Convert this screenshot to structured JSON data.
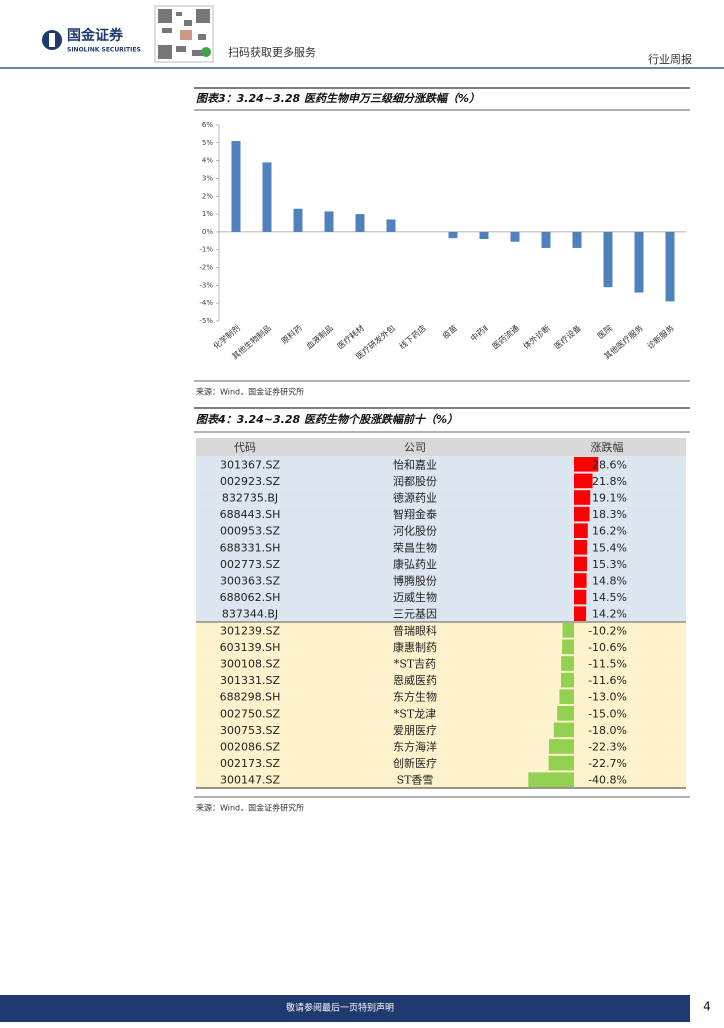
{
  "header": {
    "brand": "国金证券",
    "brand_en": "SINOLINK SECURITIES",
    "qr_text": "扫码获取更多服务",
    "report_type": "行业周报"
  },
  "chart_data": {
    "type": "bar",
    "title": "图表3：3.24~3.28 医药生物申万三级细分涨跌幅（%）",
    "categories": [
      "化学制剂",
      "其他生物制品",
      "原料药",
      "血液制品",
      "医疗耗材",
      "医疗研发外包",
      "线下药店",
      "疫苗",
      "中药Ⅱ",
      "医药流通",
      "体外诊断",
      "医疗设备",
      "医院",
      "其他医疗服务",
      "诊断服务"
    ],
    "values": [
      5.1,
      3.9,
      1.3,
      1.15,
      1.0,
      0.7,
      0,
      -0.35,
      -0.4,
      -0.55,
      -0.9,
      -0.9,
      -3.1,
      -3.4,
      -3.9
    ],
    "color": "#4f81bd",
    "ylim": [
      -5,
      6
    ],
    "yticks": [
      {
        "value": 6,
        "label": "6%"
      },
      {
        "value": 5,
        "label": "5%"
      },
      {
        "value": 4,
        "label": "4%"
      },
      {
        "value": 3,
        "label": "3%"
      },
      {
        "value": 2,
        "label": "2%"
      },
      {
        "value": 1,
        "label": "1%"
      },
      {
        "value": 0,
        "label": "0%"
      },
      {
        "value": -1,
        "label": "-1%"
      },
      {
        "value": -2,
        "label": "-2%"
      },
      {
        "value": -3,
        "label": "-3%"
      },
      {
        "value": -4,
        "label": "-4%"
      },
      {
        "value": -5,
        "label": "-5%"
      }
    ],
    "source": "来源：Wind，国金证券研究所"
  },
  "table": {
    "title": "图表4：3.24~3.28 医药生物个股涨跌幅前十（%）",
    "columns": [
      "代码",
      "公司",
      "涨跌幅"
    ],
    "rows": [
      {
        "code": "301367.SZ",
        "name": "怡和嘉业",
        "change": 28.6,
        "change_label": "28.6%"
      },
      {
        "code": "002923.SZ",
        "name": "润都股份",
        "change": 21.8,
        "change_label": "21.8%"
      },
      {
        "code": "832735.BJ",
        "name": "德源药业",
        "change": 19.1,
        "change_label": "19.1%"
      },
      {
        "code": "688443.SH",
        "name": "智翔金泰",
        "change": 18.3,
        "change_label": "18.3%"
      },
      {
        "code": "000953.SZ",
        "name": "河化股份",
        "change": 16.2,
        "change_label": "16.2%"
      },
      {
        "code": "688331.SH",
        "name": "荣昌生物",
        "change": 15.4,
        "change_label": "15.4%"
      },
      {
        "code": "002773.SZ",
        "name": "康弘药业",
        "change": 15.3,
        "change_label": "15.3%"
      },
      {
        "code": "300363.SZ",
        "name": "博腾股份",
        "change": 14.8,
        "change_label": "14.8%"
      },
      {
        "code": "688062.SH",
        "name": "迈威生物",
        "change": 14.5,
        "change_label": "14.5%"
      },
      {
        "code": "837344.BJ",
        "name": "三元基因",
        "change": 14.2,
        "change_label": "14.2%"
      },
      {
        "code": "301239.SZ",
        "name": "普瑞眼科",
        "change": -10.2,
        "change_label": "-10.2%"
      },
      {
        "code": "603139.SH",
        "name": "康惠制药",
        "change": -10.6,
        "change_label": "-10.6%"
      },
      {
        "code": "300108.SZ",
        "name": "*ST吉药",
        "change": -11.5,
        "change_label": "-11.5%"
      },
      {
        "code": "301331.SZ",
        "name": "恩威医药",
        "change": -11.6,
        "change_label": "-11.6%"
      },
      {
        "code": "688298.SH",
        "name": "东方生物",
        "change": -13.0,
        "change_label": "-13.0%"
      },
      {
        "code": "002750.SZ",
        "name": "*ST龙津",
        "change": -15.0,
        "change_label": "-15.0%"
      },
      {
        "code": "300753.SZ",
        "name": "爱朋医疗",
        "change": -18.0,
        "change_label": "-18.0%"
      },
      {
        "code": "002086.SZ",
        "name": "东方海洋",
        "change": -22.3,
        "change_label": "-22.3%"
      },
      {
        "code": "002173.SZ",
        "name": "创新医疗",
        "change": -22.7,
        "change_label": "-22.7%"
      },
      {
        "code": "300147.SZ",
        "name": "ST香雪",
        "change": -40.8,
        "change_label": "-40.8%"
      }
    ],
    "source": "来源：Wind，国金证券研究所"
  },
  "footer": {
    "disclaimer": "敬请参阅最后一页特别声明",
    "page": 4
  }
}
